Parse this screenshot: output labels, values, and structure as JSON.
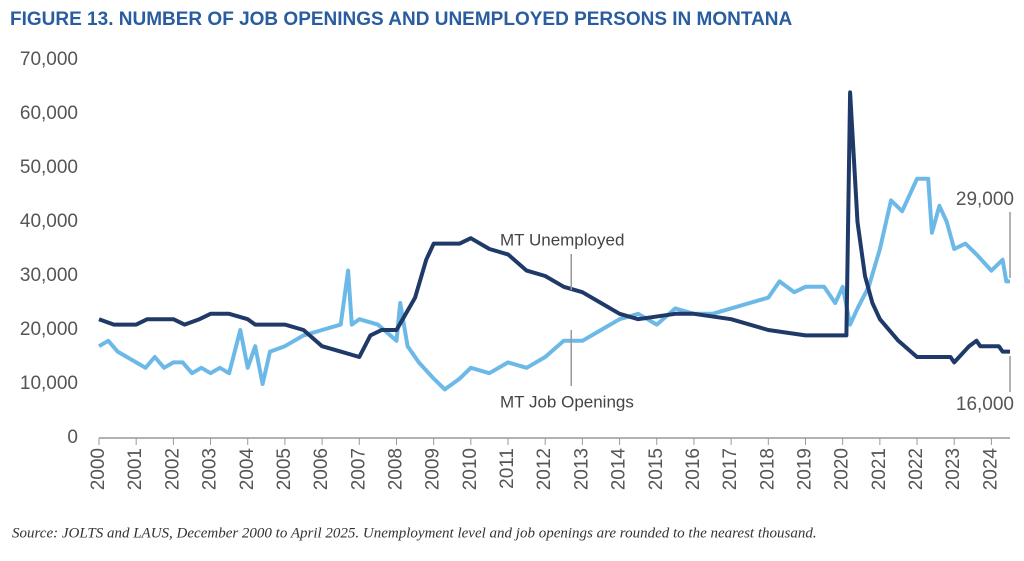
{
  "chart_data": {
    "type": "line",
    "title": "FIGURE 13. NUMBER OF JOB OPENINGS AND UNEMPLOYED PERSONS IN MONTANA",
    "source": "Source: JOLTS and LAUS, December 2000 to April 2025. Unemployment level and job openings are rounded to the nearest thousand.",
    "xlim": [
      2000,
      2024.5
    ],
    "xticks": [
      2000,
      2001,
      2002,
      2003,
      2004,
      2005,
      2006,
      2007,
      2008,
      2009,
      2010,
      2011,
      2012,
      2013,
      2014,
      2015,
      2016,
      2017,
      2018,
      2019,
      2020,
      2021,
      2022,
      2023,
      2024
    ],
    "ylim": [
      0,
      70000
    ],
    "yticks": [
      0,
      {
        "value": 10000,
        "label": "10,000"
      },
      {
        "value": 20000,
        "label": "20,000"
      },
      {
        "value": 30000,
        "label": "30,000"
      },
      {
        "value": 40000,
        "label": "40,000"
      },
      {
        "value": 50000,
        "label": "50,000"
      },
      {
        "value": 60000,
        "label": "60,000"
      },
      {
        "value": 70000,
        "label": "70,000"
      }
    ],
    "series": [
      {
        "name": "MT Unemployed",
        "color": "#1f3a68",
        "x": [
          2000,
          2000.4,
          2001,
          2001.3,
          2002,
          2002.3,
          2002.7,
          2003,
          2003.5,
          2004,
          2004.2,
          2005,
          2005.5,
          2006,
          2006.5,
          2007,
          2007.3,
          2007.6,
          2008,
          2008.5,
          2008.8,
          2009,
          2009.7,
          2010,
          2010.5,
          2011,
          2011.5,
          2012,
          2012.5,
          2013,
          2013.5,
          2014,
          2014.5,
          2015.5,
          2016,
          2017,
          2018,
          2019,
          2020.1,
          2020.2,
          2020.4,
          2020.6,
          2020.8,
          2021,
          2021.5,
          2022,
          2022.9,
          2023,
          2023.4,
          2023.6,
          2023.7,
          2024.2,
          2024.3,
          2024.5
        ],
        "values": [
          22000,
          21000,
          21000,
          22000,
          22000,
          21000,
          22000,
          23000,
          23000,
          22000,
          21000,
          21000,
          20000,
          17000,
          16000,
          15000,
          19000,
          20000,
          20000,
          26000,
          33000,
          36000,
          36000,
          37000,
          35000,
          34000,
          31000,
          30000,
          28000,
          27000,
          25000,
          23000,
          22000,
          23000,
          23000,
          22000,
          20000,
          19000,
          19000,
          64000,
          40000,
          30000,
          25000,
          22000,
          18000,
          15000,
          15000,
          14000,
          17000,
          18000,
          17000,
          17000,
          16000,
          16000
        ]
      },
      {
        "name": "MT Job Openings",
        "color": "#6cb9e8",
        "x": [
          2000,
          2000.25,
          2000.5,
          2000.75,
          2001,
          2001.25,
          2001.5,
          2001.75,
          2002,
          2002.25,
          2002.5,
          2002.75,
          2003,
          2003.25,
          2003.5,
          2003.8,
          2004,
          2004.2,
          2004.4,
          2004.6,
          2005,
          2005.5,
          2006,
          2006.5,
          2006.7,
          2006.8,
          2007,
          2007.5,
          2008,
          2008.1,
          2008.3,
          2008.6,
          2009,
          2009.3,
          2009.7,
          2010,
          2010.5,
          2011,
          2011.5,
          2012,
          2012.5,
          2013,
          2013.5,
          2014,
          2014.5,
          2015,
          2015.5,
          2016,
          2016.5,
          2017,
          2017.5,
          2018,
          2018.3,
          2018.7,
          2019,
          2019.5,
          2019.8,
          2020,
          2020.2,
          2020.4,
          2020.7,
          2021,
          2021.3,
          2021.6,
          2022,
          2022.3,
          2022.4,
          2022.6,
          2022.8,
          2023,
          2023.3,
          2023.6,
          2024,
          2024.3,
          2024.4,
          2024.5
        ],
        "values": [
          17000,
          18000,
          16000,
          15000,
          14000,
          13000,
          15000,
          13000,
          14000,
          14000,
          12000,
          13000,
          12000,
          13000,
          12000,
          20000,
          13000,
          17000,
          10000,
          16000,
          17000,
          19000,
          20000,
          21000,
          31000,
          21000,
          22000,
          21000,
          18000,
          25000,
          17000,
          14000,
          11000,
          9000,
          11000,
          13000,
          12000,
          14000,
          13000,
          15000,
          18000,
          18000,
          20000,
          22000,
          23000,
          21000,
          24000,
          23000,
          23000,
          24000,
          25000,
          26000,
          29000,
          27000,
          28000,
          28000,
          25000,
          28000,
          21000,
          24000,
          28000,
          35000,
          44000,
          42000,
          48000,
          48000,
          38000,
          43000,
          40000,
          35000,
          36000,
          34000,
          31000,
          33000,
          29000,
          29000
        ]
      }
    ],
    "annotations": [
      "MT Unemployed",
      "MT Job Openings",
      "29,000",
      "16,000"
    ]
  }
}
